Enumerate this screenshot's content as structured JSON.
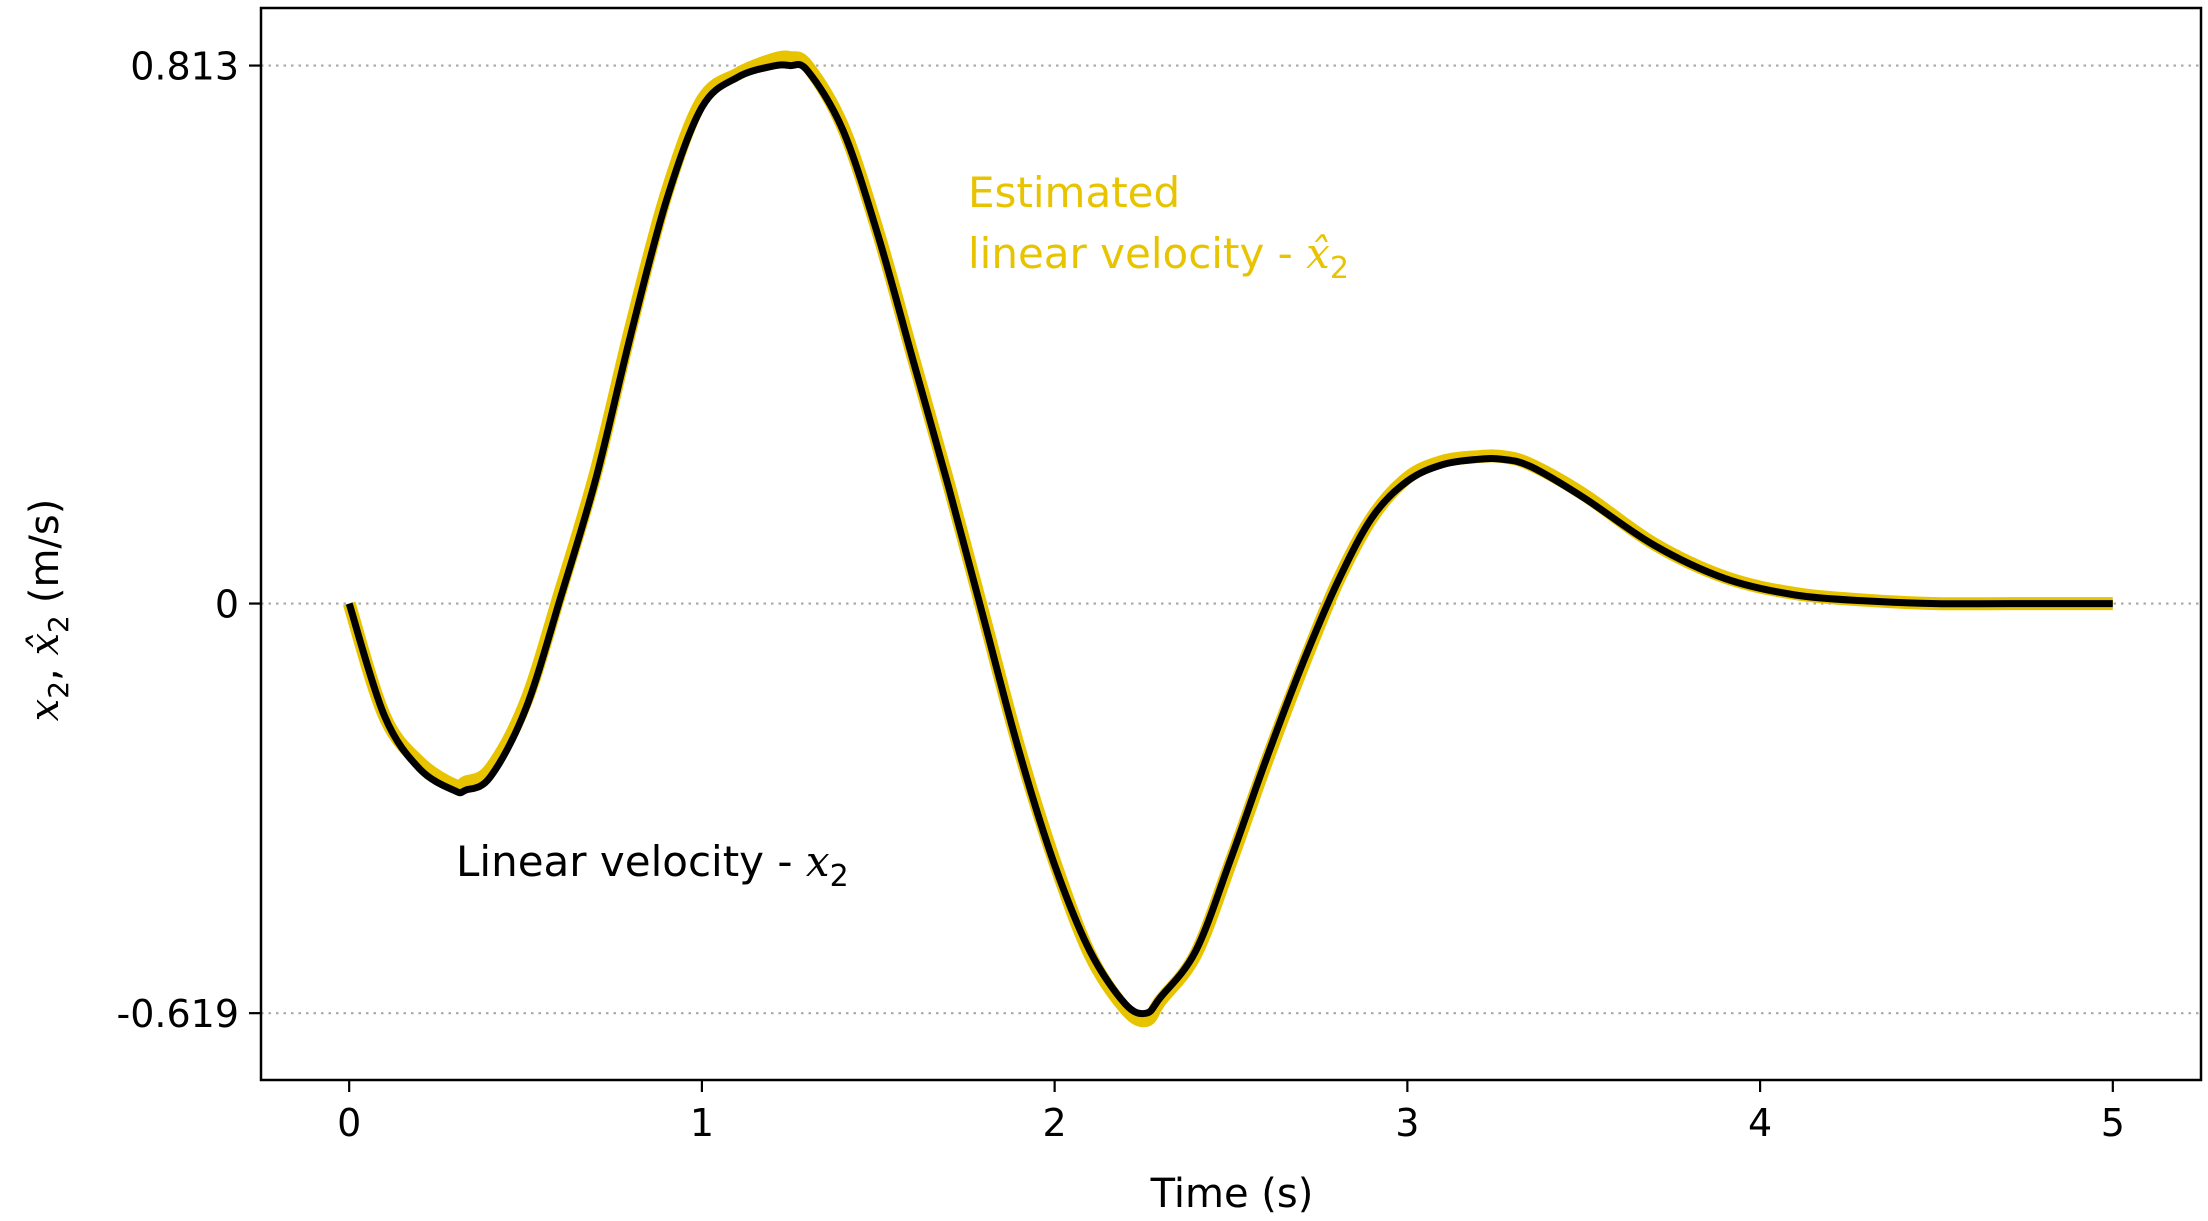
{
  "chart_data": {
    "type": "line",
    "title": "",
    "xlabel": "Time (s)",
    "ylabel": {
      "var1": "x",
      "sub1": "2",
      "sep": ", ",
      "var2": "x̂",
      "sub2": "2",
      "unit": "(m/s)"
    },
    "xlim": [
      -0.25,
      5.25
    ],
    "ylim": [
      -0.72,
      0.9
    ],
    "xticks": [
      0,
      1,
      2,
      3,
      4,
      5
    ],
    "xtick_labels": [
      "0",
      "1",
      "2",
      "3",
      "4",
      "5"
    ],
    "yticks": [
      -0.619,
      0,
      0.813
    ],
    "ytick_labels": [
      "-0.619",
      "0",
      "0.813"
    ],
    "grid": "horizontal dotted at y ticks",
    "series": [
      {
        "name": "Estimated linear velocity",
        "color": "#e8c400",
        "x": [
          0,
          0.1,
          0.2,
          0.3,
          0.33,
          0.4,
          0.5,
          0.6,
          0.7,
          0.8,
          0.9,
          1.0,
          1.1,
          1.2,
          1.25,
          1.3,
          1.4,
          1.5,
          1.6,
          1.7,
          1.8,
          1.9,
          2.0,
          2.1,
          2.2,
          2.26,
          2.3,
          2.4,
          2.5,
          2.6,
          2.7,
          2.8,
          2.9,
          3.0,
          3.1,
          3.2,
          3.27,
          3.35,
          3.5,
          3.7,
          3.9,
          4.1,
          4.3,
          4.5,
          4.7,
          5.0
        ],
        "y": [
          0,
          -0.17,
          -0.24,
          -0.275,
          -0.27,
          -0.25,
          -0.15,
          0.02,
          0.2,
          0.42,
          0.62,
          0.76,
          0.8,
          0.822,
          0.825,
          0.812,
          0.72,
          0.56,
          0.37,
          0.18,
          -0.02,
          -0.22,
          -0.39,
          -0.53,
          -0.612,
          -0.63,
          -0.6,
          -0.53,
          -0.39,
          -0.24,
          -0.1,
          0.03,
          0.13,
          0.19,
          0.215,
          0.222,
          0.222,
          0.21,
          0.165,
          0.09,
          0.04,
          0.015,
          0.005,
          0.0,
          0.0,
          0.0
        ]
      },
      {
        "name": "Linear velocity",
        "color": "#000000",
        "x": [
          0,
          0.1,
          0.2,
          0.3,
          0.33,
          0.4,
          0.5,
          0.6,
          0.7,
          0.8,
          0.9,
          1.0,
          1.1,
          1.2,
          1.25,
          1.3,
          1.4,
          1.5,
          1.6,
          1.7,
          1.8,
          1.9,
          2.0,
          2.1,
          2.2,
          2.26,
          2.3,
          2.4,
          2.5,
          2.6,
          2.7,
          2.8,
          2.9,
          3.0,
          3.1,
          3.2,
          3.27,
          3.35,
          3.5,
          3.7,
          3.9,
          4.1,
          4.3,
          4.5,
          4.7,
          5.0
        ],
        "y": [
          0,
          -0.17,
          -0.25,
          -0.283,
          -0.282,
          -0.262,
          -0.16,
          0.01,
          0.19,
          0.41,
          0.61,
          0.75,
          0.795,
          0.812,
          0.813,
          0.805,
          0.715,
          0.555,
          0.365,
          0.175,
          -0.025,
          -0.225,
          -0.395,
          -0.525,
          -0.605,
          -0.619,
          -0.595,
          -0.525,
          -0.385,
          -0.235,
          -0.095,
          0.03,
          0.13,
          0.185,
          0.21,
          0.218,
          0.218,
          0.207,
          0.16,
          0.088,
          0.038,
          0.013,
          0.004,
          0.0,
          0.0,
          0.0
        ]
      }
    ],
    "annotations": {
      "estimated_line1": "Estimated",
      "estimated_line2_text": "linear velocity - ",
      "estimated_var": "x̂",
      "estimated_sub": "2",
      "true_text": "Linear velocity - ",
      "true_var": "x",
      "true_sub": "2"
    }
  }
}
